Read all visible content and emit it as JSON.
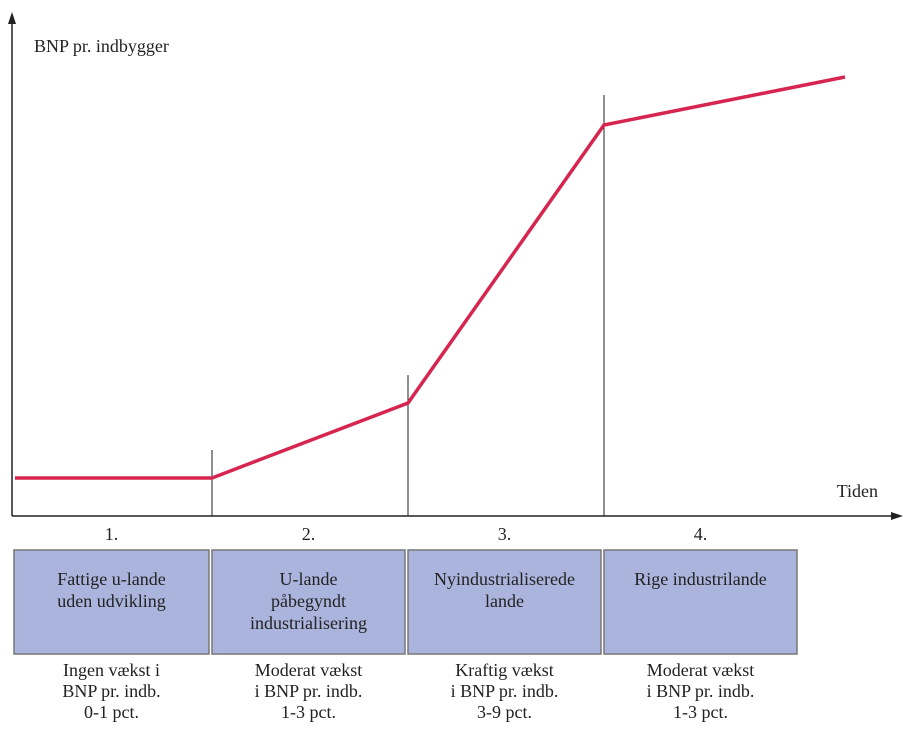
{
  "y_axis_label": "BNP pr. indbygger",
  "x_axis_label": "Tiden",
  "stages": [
    {
      "number": "1.",
      "box": [
        "Fattige u-lande",
        "uden udvikling"
      ],
      "description": [
        "Ingen vækst i",
        "BNP pr. indb.",
        "0-1 pct."
      ]
    },
    {
      "number": "2.",
      "box": [
        "U-lande",
        "påbegyndt",
        "industrialisering"
      ],
      "description": [
        "Moderat vækst",
        "i BNP pr. indb.",
        "1-3 pct."
      ]
    },
    {
      "number": "3.",
      "box": [
        "Nyindustrialiserede",
        "lande"
      ],
      "description": [
        "Kraftig vækst",
        "i BNP pr. indb.",
        "3-9 pct."
      ]
    },
    {
      "number": "4.",
      "box": [
        "Rige industrilande"
      ],
      "description": [
        "Moderat vækst",
        "i BNP pr. indb.",
        "1-3 pct."
      ]
    }
  ]
}
